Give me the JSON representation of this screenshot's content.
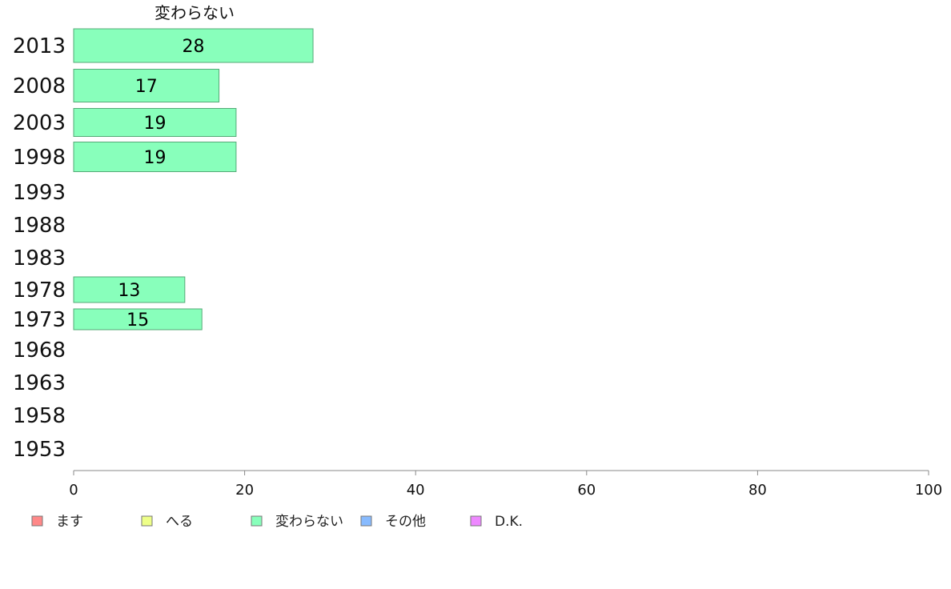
{
  "chart_data": {
    "type": "bar",
    "orientation": "horizontal",
    "series_title": "変わらない",
    "categories": [
      "2013",
      "2008",
      "2003",
      "1998",
      "1993",
      "1988",
      "1983",
      "1978",
      "1973",
      "1968",
      "1963",
      "1958",
      "1953"
    ],
    "series": [
      {
        "name": "変わらない",
        "color": "#88ffbb",
        "values": [
          28,
          17,
          19,
          19,
          null,
          null,
          null,
          13,
          15,
          null,
          null,
          null,
          null
        ]
      }
    ],
    "xlim": [
      0,
      100
    ],
    "xticks": [
      "0",
      "20",
      "40",
      "60",
      "80",
      "100"
    ],
    "grid": false,
    "legend_position": "bottom",
    "legend": [
      {
        "label": "ます",
        "color": "#ff8888"
      },
      {
        "label": "へる",
        "color": "#eeff88"
      },
      {
        "label": "変わらない",
        "color": "#88ffbb"
      },
      {
        "label": "その他",
        "color": "#88bbff"
      },
      {
        "label": "D.K.",
        "color": "#ee88ff"
      }
    ]
  }
}
